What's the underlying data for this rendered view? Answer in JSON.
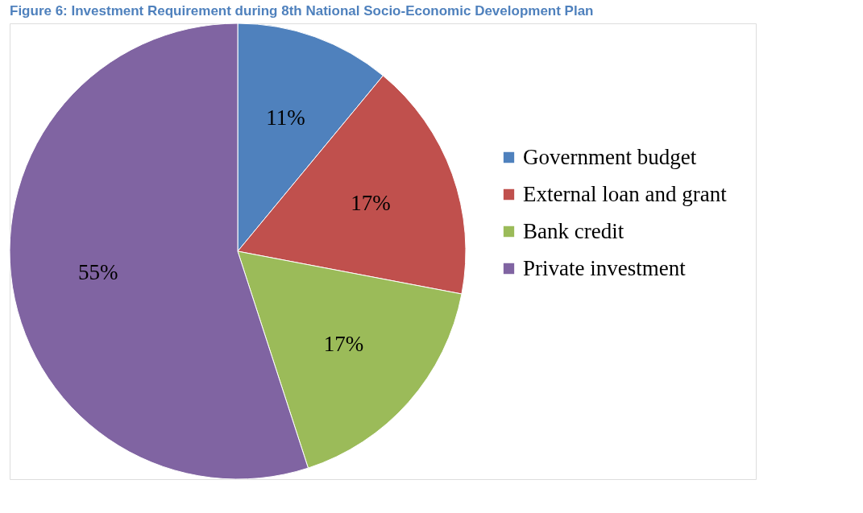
{
  "chart_data": {
    "type": "pie",
    "title": "Figure 6: Investment Requirement during 8th National Socio-Economic Development Plan",
    "categories": [
      "Government budget",
      "External loan and grant",
      "Bank credit",
      "Private investment"
    ],
    "values": [
      11,
      17,
      17,
      55
    ],
    "colors": [
      "#4f81bd",
      "#c0504d",
      "#9bbb59",
      "#8064a2"
    ],
    "value_labels": [
      "11%",
      "17%",
      "17%",
      "55%"
    ],
    "legend": "right"
  }
}
